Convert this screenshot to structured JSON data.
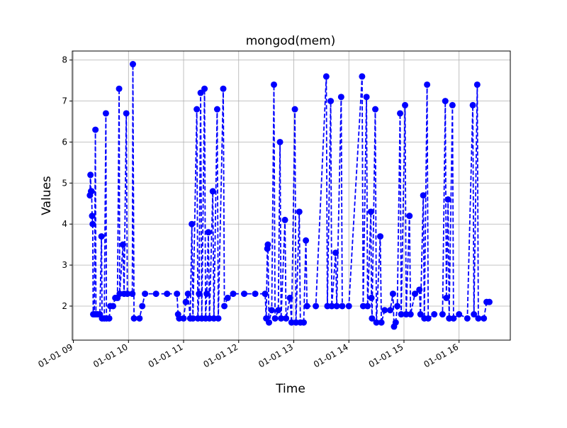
{
  "chart_data": {
    "type": "line",
    "title": "mongod(mem)",
    "x_label": "Time",
    "y_label": "Values",
    "x": [
      9.3,
      9.31,
      9.32,
      9.33,
      9.34,
      9.35,
      9.36,
      9.38,
      9.4,
      9.41,
      9.44,
      9.48,
      9.51,
      9.52,
      9.56,
      9.59,
      9.6,
      9.65,
      9.67,
      9.72,
      9.76,
      9.8,
      9.83,
      9.84,
      9.9,
      9.92,
      9.96,
      9.98,
      10.07,
      10.08,
      10.1,
      10.2,
      10.25,
      10.3,
      10.5,
      10.7,
      10.88,
      10.9,
      10.92,
      11.0,
      11.04,
      11.08,
      11.12,
      11.15,
      11.17,
      11.24,
      11.26,
      11.28,
      11.31,
      11.33,
      11.38,
      11.4,
      11.42,
      11.45,
      11.47,
      11.53,
      11.55,
      11.61,
      11.63,
      11.72,
      11.74,
      11.8,
      11.9,
      12.1,
      12.3,
      12.48,
      12.5,
      12.52,
      12.53,
      12.55,
      12.6,
      12.64,
      12.66,
      12.72,
      12.75,
      12.77,
      12.84,
      12.86,
      12.93,
      12.96,
      13.02,
      13.04,
      13.1,
      13.12,
      13.18,
      13.22,
      13.24,
      13.4,
      13.59,
      13.61,
      13.67,
      13.69,
      13.76,
      13.78,
      13.86,
      13.88,
      14.0,
      14.24,
      14.26,
      14.32,
      14.34,
      14.4,
      14.41,
      14.42,
      14.48,
      14.5,
      14.57,
      14.59,
      14.65,
      14.75,
      14.8,
      14.82,
      14.85,
      14.88,
      14.93,
      14.95,
      15.02,
      15.04,
      15.1,
      15.12,
      15.2,
      15.28,
      15.3,
      15.35,
      15.37,
      15.42,
      15.44,
      15.55,
      15.7,
      15.75,
      15.77,
      15.8,
      15.82,
      15.88,
      15.9,
      16.0,
      16.15,
      16.25,
      16.27,
      16.33,
      16.35,
      16.45,
      16.5,
      16.55
    ],
    "series": [
      {
        "color": "#0000ff",
        "values": [
          4.7,
          5.2,
          4.8,
          4.8,
          4.2,
          4.0,
          1.8,
          1.8,
          6.3,
          1.8,
          1.8,
          1.8,
          3.7,
          1.7,
          1.7,
          6.7,
          1.7,
          1.7,
          2.0,
          2.0,
          2.2,
          2.2,
          7.3,
          2.3,
          3.5,
          2.3,
          6.7,
          2.3,
          2.3,
          7.9,
          1.7,
          1.7,
          2.0,
          2.3,
          2.3,
          2.3,
          2.3,
          1.8,
          1.7,
          1.7,
          2.1,
          2.3,
          1.7,
          4.0,
          1.7,
          6.8,
          1.7,
          2.3,
          7.2,
          1.7,
          7.3,
          1.7,
          2.3,
          3.8,
          1.7,
          4.8,
          1.7,
          6.8,
          1.7,
          7.3,
          2.0,
          2.2,
          2.3,
          2.3,
          2.3,
          2.3,
          1.7,
          3.4,
          3.5,
          1.6,
          1.9,
          7.4,
          1.7,
          1.9,
          6.0,
          1.7,
          4.1,
          1.7,
          2.2,
          1.6,
          6.8,
          1.6,
          4.3,
          1.6,
          1.6,
          3.6,
          2.0,
          2.0,
          7.6,
          2.0,
          7.0,
          2.0,
          3.3,
          2.0,
          7.1,
          2.0,
          2.0,
          7.6,
          2.0,
          7.1,
          2.0,
          4.3,
          2.2,
          1.7,
          6.8,
          1.6,
          3.7,
          1.6,
          1.9,
          1.9,
          2.3,
          1.5,
          1.6,
          2.0,
          6.7,
          1.8,
          6.9,
          1.8,
          4.2,
          1.8,
          2.3,
          2.4,
          1.8,
          4.7,
          1.7,
          7.4,
          1.7,
          1.8,
          1.8,
          7.0,
          2.2,
          4.6,
          1.7,
          6.9,
          1.7,
          1.8,
          1.7,
          6.9,
          1.8,
          7.4,
          1.7,
          1.7,
          2.1,
          2.1
        ]
      }
    ],
    "xlim": [
      8.98,
      16.93
    ],
    "ylim": [
      1.17,
      8.22
    ],
    "xticks": [
      {
        "value": 9,
        "label": "01-01 09"
      },
      {
        "value": 10,
        "label": "01-01 10"
      },
      {
        "value": 11,
        "label": "01-01 11"
      },
      {
        "value": 12,
        "label": "01-01 12"
      },
      {
        "value": 13,
        "label": "01-01 13"
      },
      {
        "value": 14,
        "label": "01-01 14"
      },
      {
        "value": 15,
        "label": "01-01 15"
      },
      {
        "value": 16,
        "label": "01-01 16"
      }
    ],
    "yticks": [
      2,
      3,
      4,
      5,
      6,
      7,
      8
    ],
    "grid": true
  }
}
